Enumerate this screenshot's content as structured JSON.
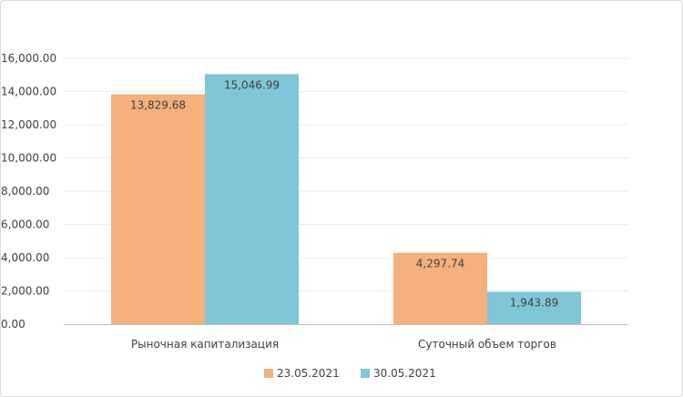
{
  "chart_data": {
    "type": "bar",
    "categories": [
      "Рыночная капитализация",
      "Суточный объем торгов"
    ],
    "series": [
      {
        "name": "23.05.2021",
        "color": "#F5B07C",
        "values": [
          13829.68,
          4297.74
        ],
        "labels": [
          "13,829.68",
          "4,297.74"
        ]
      },
      {
        "name": "30.05.2021",
        "color": "#7FC6D8",
        "values": [
          15046.99,
          1943.89
        ],
        "labels": [
          "15,046.99",
          "1,943.89"
        ]
      }
    ],
    "y_ticks": [
      "0.00",
      "2,000.00",
      "4,000.00",
      "6,000.00",
      "8,000.00",
      "10,000.00",
      "12,000.00",
      "14,000.00",
      "16,000.00"
    ],
    "ylim": [
      0,
      16000
    ],
    "grid": true,
    "legend_position": "bottom"
  }
}
